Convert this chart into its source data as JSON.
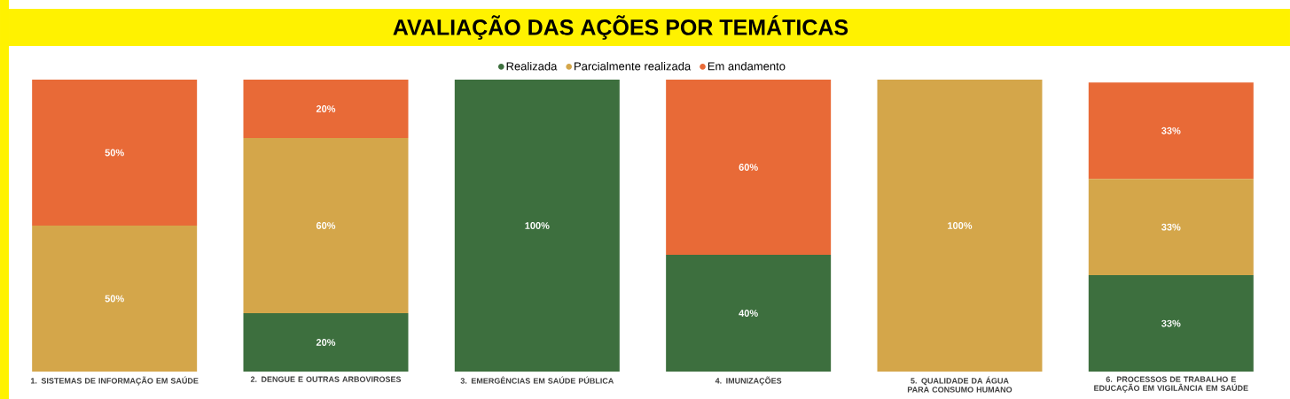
{
  "chart_data": {
    "type": "bar",
    "title": "AVALIAÇÃO DAS AÇÕES POR TEMÁTICAS",
    "stacked": true,
    "legend": "top",
    "categories": [
      "1. SISTEMAS DE INFORMAÇÃO EM SAÚDE",
      "2. DENGUE E OUTRAS ARBOVIROSES",
      "3. EMERGÊNCIAS EM SAÚDE PÚBLICA",
      "4. IMUNIZAÇÕES",
      "5. QUALIDADE DA ÁGUA PARA CONSUMO HUMANO",
      "6. PROCESSOS DE TRABALHO E EDUCAÇÃO EM VIGILÂNCIA EM SAÚDE"
    ],
    "series": [
      {
        "name": "Realizada",
        "color": "#3d6f3e",
        "values": [
          0,
          20,
          100,
          40,
          0,
          33
        ],
        "value_labels": [
          null,
          "20%",
          "100%",
          "40%",
          null,
          "33%"
        ]
      },
      {
        "name": "Parcialmente realizada",
        "color": "#d4a64a",
        "values": [
          50,
          60,
          0,
          0,
          100,
          33
        ],
        "value_labels": [
          "50%",
          "60%",
          null,
          null,
          "100%",
          "33%"
        ]
      },
      {
        "name": "Em andamento",
        "color": "#e86a37",
        "values": [
          50,
          20,
          0,
          60,
          0,
          33
        ],
        "value_labels": [
          "50%",
          "20%",
          null,
          "60%",
          null,
          "33%"
        ]
      }
    ]
  }
}
